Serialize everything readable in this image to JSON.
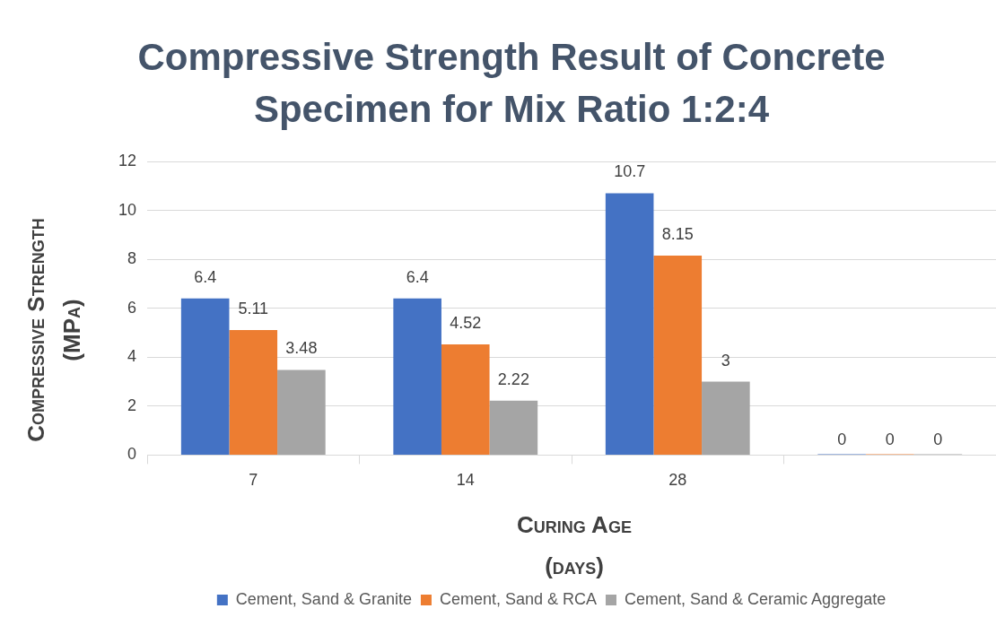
{
  "chart_data": {
    "type": "bar",
    "title": "Compressive Strength Result of Concrete Specimen for Mix Ratio 1:2:4",
    "xlabel": "Curing Age (days)",
    "ylabel": "Compressive Strength (MPa)",
    "categories": [
      "7",
      "14",
      "28",
      null
    ],
    "series": [
      {
        "name": "Cement, Sand & Granite",
        "color": "#4472c4",
        "values": [
          6.4,
          6.4,
          10.7,
          0
        ]
      },
      {
        "name": "Cement, Sand & RCA",
        "color": "#ed7d31",
        "values": [
          5.11,
          4.52,
          8.15,
          0
        ]
      },
      {
        "name": "Cement, Sand & Ceramic Aggregate",
        "color": "#a5a5a5",
        "values": [
          3.48,
          2.22,
          3,
          0
        ]
      }
    ],
    "ylim": [
      0,
      12
    ],
    "yticks": [
      0,
      2,
      4,
      6,
      8,
      10,
      12
    ],
    "grid": "y",
    "legend": "bottom",
    "data_labels": true
  }
}
